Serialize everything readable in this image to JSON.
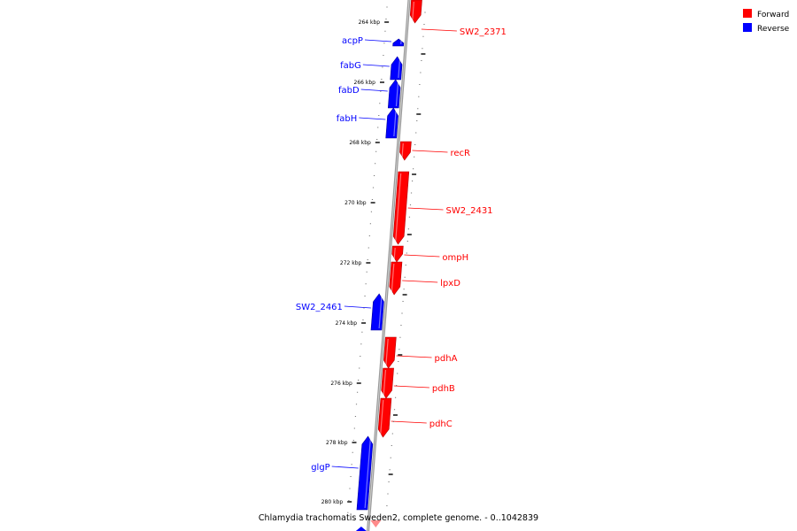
{
  "caption": "Chlamydia trachomatis Sweden2, complete genome. - 0..1042839",
  "legend": [
    {
      "label": "Forward",
      "color": "#ff0000"
    },
    {
      "label": "Reverse",
      "color": "#0000ff"
    }
  ],
  "colors": {
    "forward": "#ff0000",
    "reverse": "#0000ff",
    "backbone": "#9a9a9a"
  },
  "ticks": [
    "264 kbp",
    "266 kbp",
    "268 kbp",
    "270 kbp",
    "272 kbp",
    "274 kbp",
    "276 kbp",
    "278 kbp",
    "280 kbp"
  ],
  "genes": [
    {
      "name": "SW2_2371",
      "strand": "forward"
    },
    {
      "name": "acpP",
      "strand": "reverse"
    },
    {
      "name": "fabG",
      "strand": "reverse"
    },
    {
      "name": "fabD",
      "strand": "reverse"
    },
    {
      "name": "fabH",
      "strand": "reverse"
    },
    {
      "name": "recR",
      "strand": "forward"
    },
    {
      "name": "SW2_2431",
      "strand": "forward"
    },
    {
      "name": "ompH",
      "strand": "forward"
    },
    {
      "name": "lpxD",
      "strand": "forward"
    },
    {
      "name": "SW2_2461",
      "strand": "reverse"
    },
    {
      "name": "pdhA",
      "strand": "forward"
    },
    {
      "name": "pdhB",
      "strand": "forward"
    },
    {
      "name": "pdhC",
      "strand": "forward"
    },
    {
      "name": "glgP",
      "strand": "reverse"
    }
  ]
}
